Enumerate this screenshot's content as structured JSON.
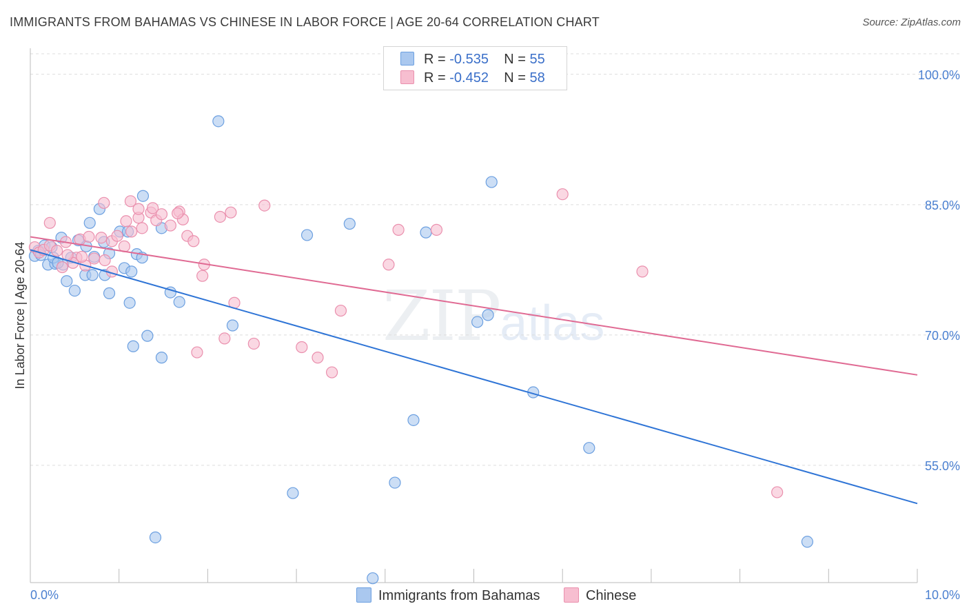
{
  "header": {
    "title": "IMMIGRANTS FROM BAHAMAS VS CHINESE IN LABOR FORCE | AGE 20-64 CORRELATION CHART",
    "source": "Source: ZipAtlas.com"
  },
  "legend": {
    "rows": [
      {
        "r_label": "R =",
        "r_value": "-0.535",
        "n_label": "N =",
        "n_value": "55"
      },
      {
        "r_label": "R =",
        "r_value": "-0.452",
        "n_label": "N =",
        "n_value": "58"
      }
    ]
  },
  "bottom_legend": {
    "items": [
      {
        "label": "Immigrants from Bahamas"
      },
      {
        "label": "Chinese"
      }
    ]
  },
  "watermark": {
    "zip": "ZIP",
    "atlas": "atlas"
  },
  "colors": {
    "blue_fill": "#aac8ef",
    "blue_stroke": "#6b9fe0",
    "blue_line": "#2e74d6",
    "pink_fill": "#f7bed0",
    "pink_stroke": "#ea8fad",
    "pink_line": "#e06a93",
    "grid": "#dcdcdc",
    "axis": "#bbbbbb"
  },
  "chart_data": {
    "type": "scatter",
    "title": "IMMIGRANTS FROM BAHAMAS VS CHINESE IN LABOR FORCE | AGE 20-64 CORRELATION CHART",
    "xlabel": "",
    "ylabel": "In Labor Force | Age 20-64",
    "xlim": [
      0,
      10
    ],
    "ylim": [
      41.5,
      103
    ],
    "x_tick_labels": [
      "0.0%",
      "10.0%"
    ],
    "y_ticks": [
      55,
      70,
      85,
      100
    ],
    "y_tick_labels": [
      "55.0%",
      "70.0%",
      "85.0%",
      "100.0%"
    ],
    "grid": true,
    "legend_position": "top-center",
    "series": [
      {
        "name": "Immigrants from Bahamas",
        "r": -0.535,
        "n": 55,
        "trend": {
          "x": [
            0.0,
            10.0
          ],
          "y": [
            79.8,
            50.6
          ]
        },
        "points": [
          [
            0.05,
            79.1
          ],
          [
            0.09,
            79.7
          ],
          [
            0.12,
            79.2
          ],
          [
            0.16,
            80.3
          ],
          [
            0.2,
            78.1
          ],
          [
            0.28,
            78.2
          ],
          [
            0.24,
            80.1
          ],
          [
            0.37,
            78.1
          ],
          [
            0.46,
            78.9
          ],
          [
            0.54,
            80.9
          ],
          [
            0.63,
            80.2
          ],
          [
            0.72,
            79.0
          ],
          [
            0.83,
            80.7
          ],
          [
            0.35,
            81.2
          ],
          [
            0.41,
            76.2
          ],
          [
            0.5,
            75.1
          ],
          [
            0.62,
            76.9
          ],
          [
            0.7,
            76.9
          ],
          [
            0.84,
            76.9
          ],
          [
            0.89,
            79.4
          ],
          [
            1.01,
            81.9
          ],
          [
            1.06,
            77.7
          ],
          [
            1.1,
            81.9
          ],
          [
            1.2,
            79.3
          ],
          [
            1.26,
            78.9
          ],
          [
            1.48,
            82.3
          ],
          [
            0.67,
            82.9
          ],
          [
            0.78,
            84.5
          ],
          [
            1.27,
            86.0
          ],
          [
            0.89,
            74.8
          ],
          [
            1.12,
            73.7
          ],
          [
            1.14,
            77.3
          ],
          [
            1.58,
            74.9
          ],
          [
            1.68,
            73.8
          ],
          [
            1.32,
            69.9
          ],
          [
            1.16,
            68.7
          ],
          [
            1.48,
            67.4
          ],
          [
            2.28,
            71.1
          ],
          [
            2.12,
            94.6
          ],
          [
            3.12,
            81.5
          ],
          [
            3.6,
            82.8
          ],
          [
            4.46,
            81.8
          ],
          [
            5.16,
            72.3
          ],
          [
            5.04,
            71.5
          ],
          [
            5.2,
            87.6
          ],
          [
            5.67,
            63.4
          ],
          [
            4.32,
            60.2
          ],
          [
            6.3,
            57.0
          ],
          [
            2.96,
            51.8
          ],
          [
            4.11,
            53.0
          ],
          [
            1.41,
            46.7
          ],
          [
            3.86,
            42.0
          ],
          [
            8.76,
            46.2
          ],
          [
            0.26,
            78.9
          ],
          [
            0.31,
            78.3
          ]
        ]
      },
      {
        "name": "Chinese",
        "r": -0.452,
        "n": 58,
        "trend": {
          "x": [
            0.0,
            10.0
          ],
          "y": [
            81.3,
            65.4
          ]
        },
        "points": [
          [
            0.05,
            80.1
          ],
          [
            0.1,
            79.5
          ],
          [
            0.15,
            79.8
          ],
          [
            0.22,
            80.3
          ],
          [
            0.3,
            79.7
          ],
          [
            0.4,
            80.7
          ],
          [
            0.52,
            78.9
          ],
          [
            0.62,
            78.0
          ],
          [
            0.72,
            78.8
          ],
          [
            0.84,
            78.6
          ],
          [
            0.92,
            77.3
          ],
          [
            0.48,
            78.3
          ],
          [
            0.56,
            81.0
          ],
          [
            0.66,
            81.3
          ],
          [
            0.8,
            81.2
          ],
          [
            0.92,
            80.8
          ],
          [
            0.98,
            81.4
          ],
          [
            1.06,
            80.2
          ],
          [
            1.08,
            83.1
          ],
          [
            1.14,
            81.9
          ],
          [
            1.22,
            83.5
          ],
          [
            1.26,
            82.3
          ],
          [
            1.36,
            84.1
          ],
          [
            1.42,
            83.2
          ],
          [
            1.48,
            83.9
          ],
          [
            1.58,
            82.6
          ],
          [
            1.68,
            84.2
          ],
          [
            1.72,
            83.3
          ],
          [
            1.77,
            81.4
          ],
          [
            1.84,
            80.8
          ],
          [
            1.96,
            78.1
          ],
          [
            1.94,
            76.8
          ],
          [
            2.14,
            83.6
          ],
          [
            2.26,
            84.1
          ],
          [
            2.64,
            84.9
          ],
          [
            0.83,
            85.2
          ],
          [
            1.13,
            85.4
          ],
          [
            1.22,
            84.5
          ],
          [
            1.38,
            84.6
          ],
          [
            1.66,
            84.0
          ],
          [
            0.22,
            82.9
          ],
          [
            2.3,
            73.7
          ],
          [
            2.19,
            69.6
          ],
          [
            2.52,
            69.0
          ],
          [
            1.88,
            68.0
          ],
          [
            3.06,
            68.6
          ],
          [
            3.24,
            67.4
          ],
          [
            3.4,
            65.7
          ],
          [
            3.5,
            72.8
          ],
          [
            4.04,
            78.1
          ],
          [
            4.15,
            82.1
          ],
          [
            4.58,
            82.1
          ],
          [
            6.0,
            86.2
          ],
          [
            6.9,
            77.3
          ],
          [
            8.42,
            51.9
          ],
          [
            0.42,
            79.2
          ],
          [
            0.36,
            77.8
          ],
          [
            0.58,
            79.0
          ]
        ]
      }
    ]
  }
}
